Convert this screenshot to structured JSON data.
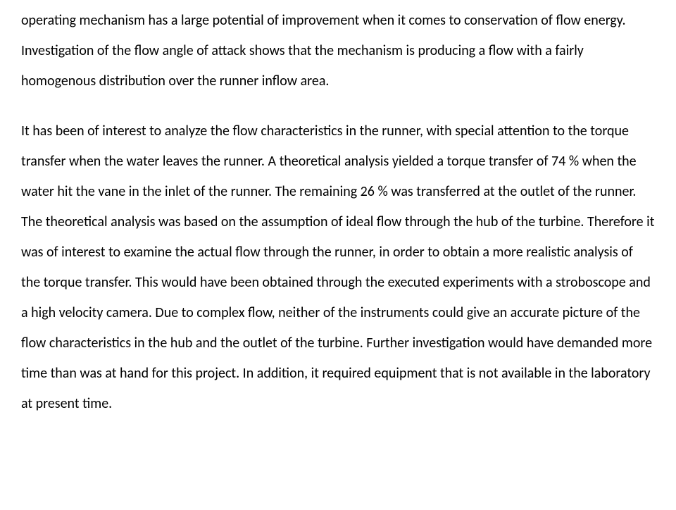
{
  "typography": {
    "font_family": "Calibri, 'Segoe UI', Arial, sans-serif",
    "font_size_pt": 15,
    "line_height": 2.15,
    "color": "#000000",
    "background_color": "#ffffff"
  },
  "paragraphs": [
    "operating mechanism has a large potential of improvement when it comes to conservation of flow energy. Investigation of the flow angle of attack shows that the mechanism is producing a flow with a fairly homogenous distribution over the runner inflow area.",
    "It has been of interest to analyze the flow characteristics in the runner, with special attention to the torque transfer when the water leaves the runner. A theoretical analysis yielded a torque transfer of 74 % when the water hit the vane in the inlet of the runner. The remaining 26 % was transferred at the outlet of the runner. The theoretical analysis was based on the assumption of ideal flow through the hub of the turbine. Therefore it was of interest to examine the actual flow through the runner, in order to obtain a more realistic analysis of the torque transfer. This would have been obtained through the executed experiments with a stroboscope and a high velocity camera. Due to complex flow, neither of the instruments could give an accurate picture of the flow characteristics in the hub and the outlet of the turbine. Further investigation would have demanded more time than was at hand for this project. In addition, it required equipment that is not available in the laboratory at present time."
  ]
}
